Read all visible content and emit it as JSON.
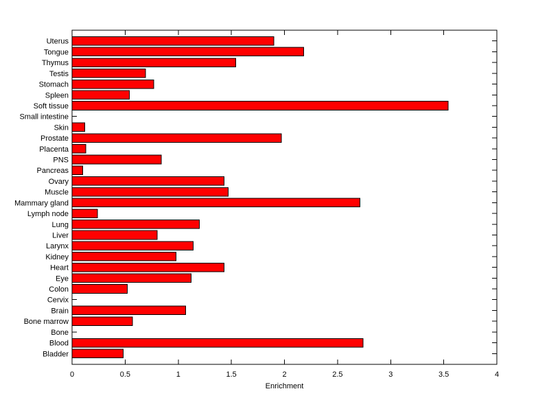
{
  "figure": {
    "background": "#ffffff"
  },
  "chart_data": {
    "type": "bar",
    "orientation": "horizontal",
    "title": "",
    "xlabel": "Enrichment",
    "ylabel": "",
    "xlim": [
      0,
      4
    ],
    "xticks": [
      0,
      0.5,
      1,
      1.5,
      2,
      2.5,
      3,
      3.5,
      4
    ],
    "xtick_labels": [
      "0",
      "0.5",
      "1",
      "1.5",
      "2",
      "2.5",
      "3",
      "3.5",
      "4"
    ],
    "grid": false,
    "legend_position": "none",
    "bar_color": "#ff0000",
    "bar_edge_color": "#000000",
    "axis_color": "#000000",
    "text_color": "#000000",
    "categories": [
      "Uterus",
      "Tongue",
      "Thymus",
      "Testis",
      "Stomach",
      "Spleen",
      "Soft tissue",
      "Small intestine",
      "Skin",
      "Prostate",
      "Placenta",
      "PNS",
      "Pancreas",
      "Ovary",
      "Muscle",
      "Mammary gland",
      "Lymph node",
      "Lung",
      "Liver",
      "Larynx",
      "Kidney",
      "Heart",
      "Eye",
      "Colon",
      "Cervix",
      "Brain",
      "Bone marrow",
      "Bone",
      "Blood",
      "Bladder"
    ],
    "values": [
      1.9,
      2.18,
      1.54,
      0.69,
      0.77,
      0.54,
      3.54,
      0,
      0.12,
      1.97,
      0.13,
      0.84,
      0.1,
      1.43,
      1.47,
      2.71,
      0.24,
      1.2,
      0.8,
      1.14,
      0.98,
      1.43,
      1.12,
      0.52,
      0,
      1.07,
      0.57,
      0,
      2.74,
      0.48
    ]
  }
}
